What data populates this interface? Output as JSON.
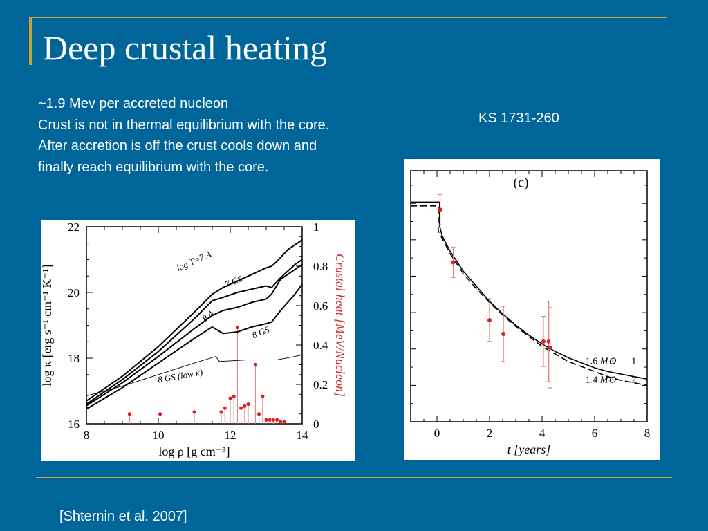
{
  "slide": {
    "title": "Deep crustal heating",
    "bullets": [
      "~1.9 Mev per accreted nucleon",
      "Crust is not in thermal equilibrium with the core.",
      "After accretion is off the crust cools down and",
      "finally reach equilibrium with the core."
    ],
    "ks_label": "KS 1731-260",
    "citation": "[Shternin et al. 2007]",
    "colors": {
      "background": "#00669a",
      "rule": "#c8a23a",
      "text": "#ffffff",
      "marker": "#e02020",
      "errorbar": "#e08080"
    }
  },
  "chart_data": [
    {
      "type": "line",
      "xlabel": "log ρ [g cm⁻³]",
      "ylabel": "log κ [erg s⁻¹ cm⁻¹ K⁻¹]",
      "y2label": "Crustal heat [MeV/Nucleon]",
      "xlim": [
        8,
        14
      ],
      "ylim": [
        16,
        22
      ],
      "y2lim": [
        0,
        1
      ],
      "x_ticks": [
        "8",
        "10",
        "12",
        "14"
      ],
      "y_ticks": [
        "16",
        "18",
        "20",
        "22"
      ],
      "y2_ticks": [
        "0",
        "0.2",
        "0.4",
        "0.6",
        "0.8",
        "1"
      ],
      "series": [
        {
          "name": "log T=7 A",
          "x": [
            8,
            9,
            10,
            11,
            11.5,
            11.8,
            12.5,
            13.0,
            13.15,
            13.3,
            13.6,
            14
          ],
          "y": [
            16.7,
            17.45,
            18.35,
            19.4,
            19.95,
            20.15,
            20.5,
            20.75,
            20.8,
            20.95,
            21.3,
            21.6
          ]
        },
        {
          "name": "7 GS",
          "x": [
            8,
            9,
            10,
            11,
            11.5,
            11.8,
            12.2,
            12.6,
            13.0,
            13.15,
            13.4,
            13.8,
            14
          ],
          "y": [
            16.6,
            17.35,
            18.2,
            19.2,
            19.75,
            19.85,
            20.0,
            20.1,
            20.2,
            20.15,
            20.45,
            20.85,
            21.0
          ]
        },
        {
          "name": "8 A",
          "x": [
            8,
            9,
            10,
            11,
            11.5,
            11.8,
            12.2,
            12.6,
            13.0,
            13.15,
            13.4,
            13.8,
            14
          ],
          "y": [
            16.55,
            17.25,
            18.05,
            18.9,
            19.3,
            19.45,
            19.55,
            19.7,
            19.8,
            19.95,
            20.4,
            20.7,
            20.85
          ]
        },
        {
          "name": "8 GS",
          "x": [
            8,
            9,
            10,
            11,
            11.5,
            11.8,
            12.2,
            12.6,
            13.0,
            13.15,
            13.4,
            13.8,
            14
          ],
          "y": [
            16.45,
            17.1,
            17.85,
            18.6,
            18.95,
            18.75,
            18.8,
            18.95,
            19.05,
            19.1,
            19.45,
            19.95,
            20.25
          ]
        },
        {
          "name": "8 GS (low κ)",
          "x": [
            8,
            9,
            10,
            11,
            11.6,
            11.7,
            12.5,
            13.3,
            13.8,
            14
          ],
          "y": [
            16.85,
            17.15,
            17.5,
            17.85,
            18.05,
            17.9,
            17.95,
            17.95,
            18.05,
            18.1
          ]
        }
      ],
      "heat_sources": {
        "x": [
          9.2,
          10.05,
          11.0,
          11.75,
          11.85,
          12.0,
          12.1,
          12.2,
          12.3,
          12.4,
          12.5,
          12.7,
          12.8,
          12.9,
          13.0,
          13.1,
          13.2,
          13.3,
          13.4,
          13.5
        ],
        "y": [
          0.05,
          0.05,
          0.06,
          0.06,
          0.08,
          0.13,
          0.14,
          0.49,
          0.08,
          0.09,
          0.1,
          0.3,
          0.05,
          0.14,
          0.02,
          0.02,
          0.02,
          0.02,
          0.01,
          0.01
        ]
      }
    },
    {
      "type": "scatter",
      "panel_label": "(c)",
      "xlabel": "t [years]",
      "xlim": [
        -1,
        8
      ],
      "ylim": [
        0,
        1
      ],
      "x_ticks": [
        "0",
        "2",
        "4",
        "6",
        "8"
      ],
      "points": [
        {
          "x": 0.12,
          "y": 0.845,
          "yerr": 0.06
        },
        {
          "x": 0.62,
          "y": 0.635,
          "yerr": 0.06
        },
        {
          "x": 2.0,
          "y": 0.405,
          "yerr": 0.085
        },
        {
          "x": 2.53,
          "y": 0.35,
          "yerr": 0.11
        },
        {
          "x": 4.05,
          "y": 0.32,
          "yerr": 0.1
        },
        {
          "x": 4.25,
          "y": 0.32,
          "yerr": 0.16
        },
        {
          "x": 4.3,
          "y": 0.295,
          "yerr": 0.16
        }
      ],
      "series": [
        {
          "name": "1.6",
          "label": "1.6",
          "unit": "M⊙",
          "index": "1",
          "dash": false,
          "x": [
            -1,
            0.1,
            0.1,
            0.2,
            0.5,
            1.0,
            1.5,
            2.0,
            2.5,
            3.0,
            3.5,
            4.0,
            4.5,
            5.0,
            5.5,
            6.0,
            6.5,
            7.0,
            7.5,
            8.0
          ],
          "y": [
            0.875,
            0.875,
            0.78,
            0.74,
            0.68,
            0.6,
            0.54,
            0.48,
            0.43,
            0.385,
            0.345,
            0.31,
            0.28,
            0.255,
            0.235,
            0.215,
            0.2,
            0.19,
            0.18,
            0.17
          ]
        },
        {
          "name": "1.4",
          "label": "1.4",
          "unit": "M⊙",
          "index": "2",
          "dash": true,
          "x": [
            -1,
            0.05,
            0.05,
            0.2,
            0.5,
            1.0,
            1.5,
            2.0,
            2.5,
            3.0,
            3.5,
            4.0,
            4.5,
            5.0,
            5.5,
            6.0,
            6.5,
            7.0,
            7.5,
            8.0
          ],
          "y": [
            0.86,
            0.86,
            0.76,
            0.73,
            0.67,
            0.59,
            0.53,
            0.475,
            0.425,
            0.38,
            0.34,
            0.3,
            0.27,
            0.24,
            0.22,
            0.2,
            0.18,
            0.165,
            0.155,
            0.145
          ]
        }
      ]
    }
  ]
}
